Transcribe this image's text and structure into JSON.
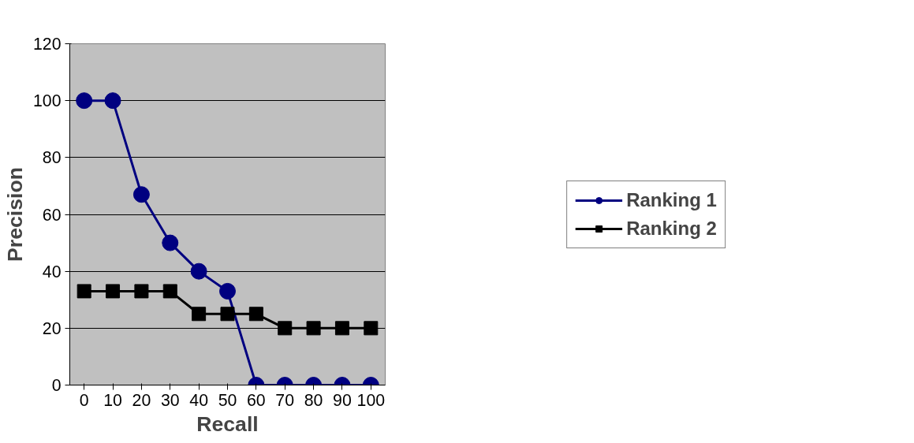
{
  "chart_data": {
    "type": "line",
    "xlabel": "Recall",
    "ylabel": "Precision",
    "categories": [
      "0",
      "10",
      "20",
      "30",
      "40",
      "50",
      "60",
      "70",
      "80",
      "90",
      "100"
    ],
    "series": [
      {
        "name": "Ranking 1",
        "color": "#000080",
        "marker": "circle",
        "values": [
          100,
          100,
          67,
          50,
          40,
          33,
          0,
          0,
          0,
          0,
          0
        ]
      },
      {
        "name": "Ranking 2",
        "color": "#000000",
        "marker": "square",
        "values": [
          33,
          33,
          33,
          33,
          25,
          25,
          25,
          20,
          20,
          20,
          20
        ]
      }
    ],
    "ylim": [
      0,
      120
    ],
    "yticks": [
      0,
      20,
      40,
      60,
      80,
      100,
      120
    ],
    "grid": "y",
    "legend": "right",
    "line_style": "solid"
  }
}
